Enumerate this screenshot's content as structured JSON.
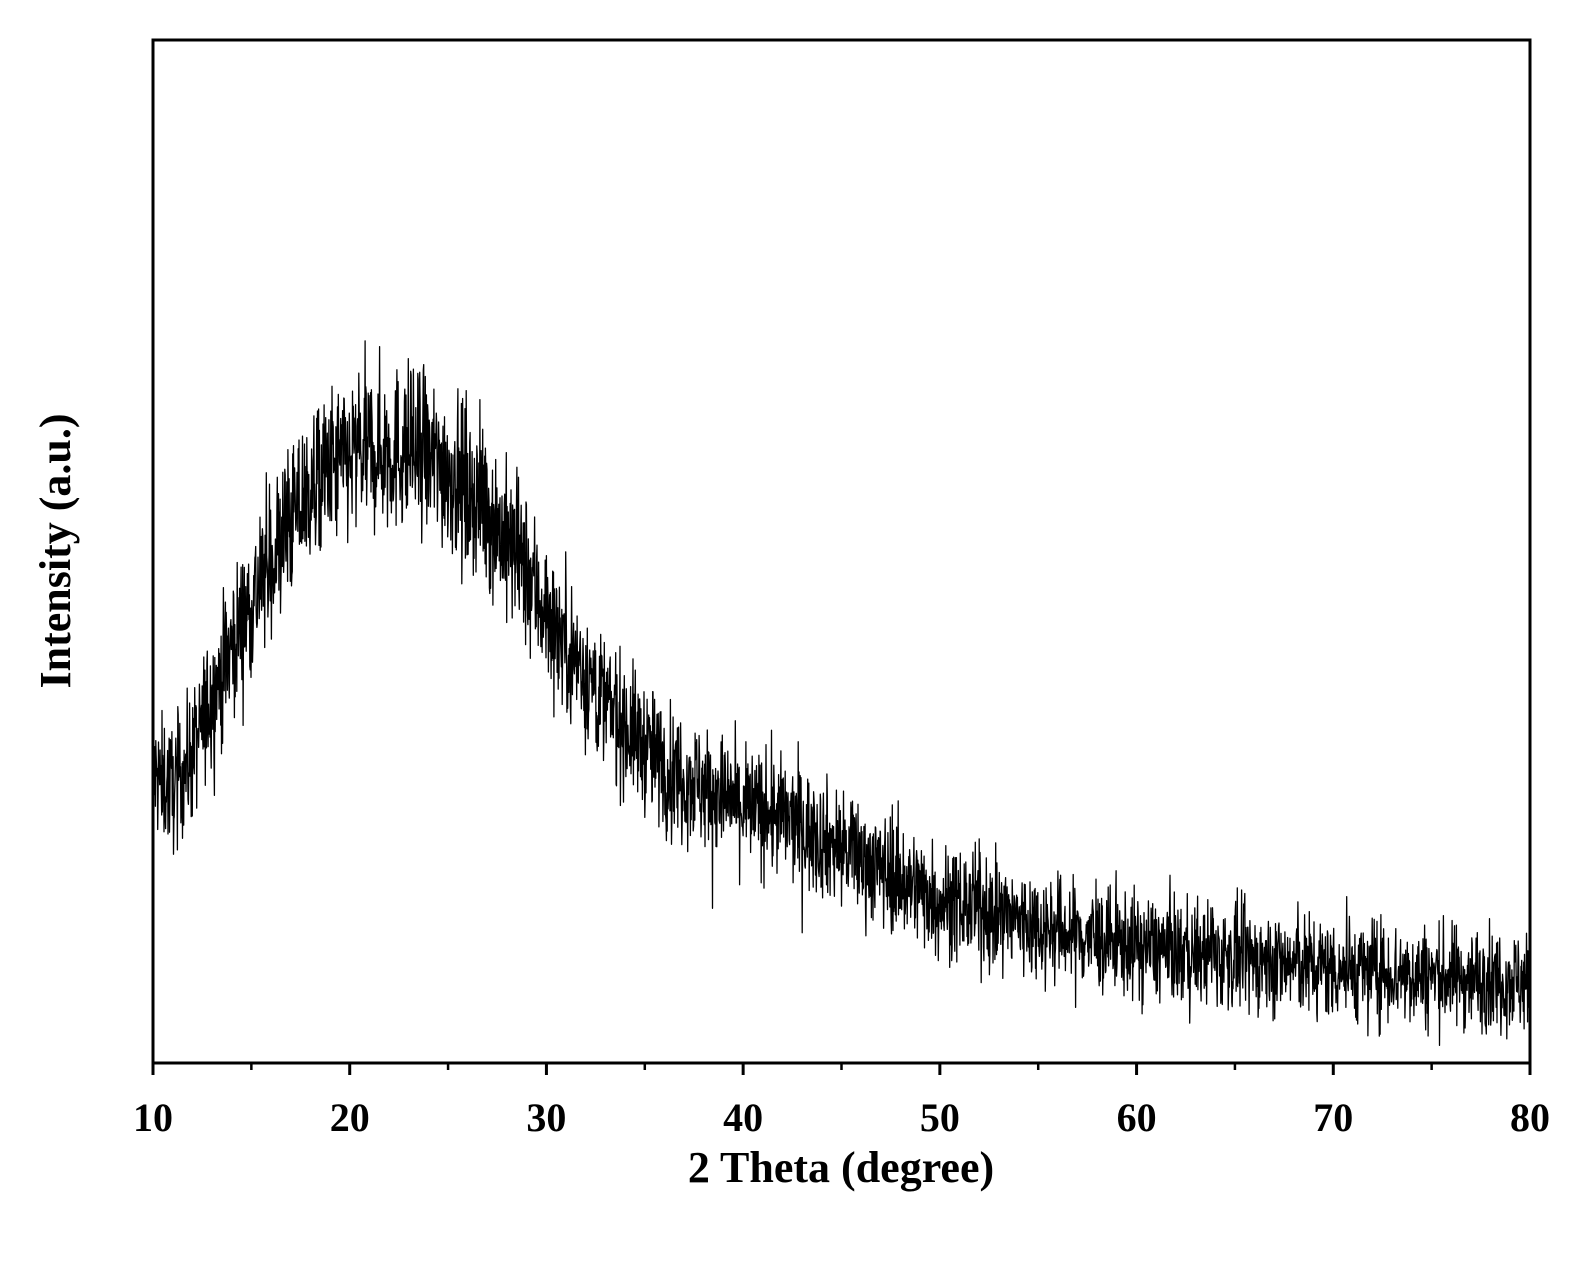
{
  "chart_data": {
    "type": "line",
    "title": "",
    "xlabel": "2 Theta (degree)",
    "ylabel": "Intensity (a.u.)",
    "xlim": [
      10,
      80
    ],
    "ylim": [
      0,
      100
    ],
    "x_major_ticks": [
      10,
      20,
      30,
      40,
      50,
      60,
      70,
      80
    ],
    "x_tick_labels": [
      "10",
      "20",
      "30",
      "40",
      "50",
      "60",
      "70",
      "80"
    ],
    "x_minor_ticks": [
      15,
      25,
      35,
      45,
      55,
      65,
      75
    ],
    "y_tick_labels_shown": false,
    "grid": false,
    "legend": "none",
    "series": [
      {
        "color": "#000000",
        "noise_amplitude": 4,
        "x": [
          10,
          11,
          12,
          13,
          14,
          15,
          16,
          17,
          18,
          19,
          20,
          21,
          22,
          23,
          24,
          25,
          26,
          27,
          28,
          29,
          30,
          31,
          32,
          33,
          34,
          35,
          36,
          37,
          38,
          39,
          40,
          42,
          44,
          46,
          48,
          50,
          52,
          54,
          56,
          58,
          60,
          62,
          64,
          66,
          68,
          70,
          72,
          74,
          76,
          78,
          80
        ],
        "y": [
          28,
          27,
          30,
          36,
          41,
          45,
          49,
          53,
          56,
          58,
          59,
          60,
          60,
          60,
          59,
          58,
          56,
          54,
          51,
          48,
          44,
          41,
          38,
          35,
          33,
          31,
          29,
          28,
          27,
          26,
          25,
          24,
          22,
          20,
          18,
          16,
          15,
          14,
          13,
          12,
          11.5,
          11,
          10.5,
          10,
          9.6,
          9.3,
          9,
          8.7,
          8.4,
          8.2,
          8
        ]
      }
    ]
  }
}
